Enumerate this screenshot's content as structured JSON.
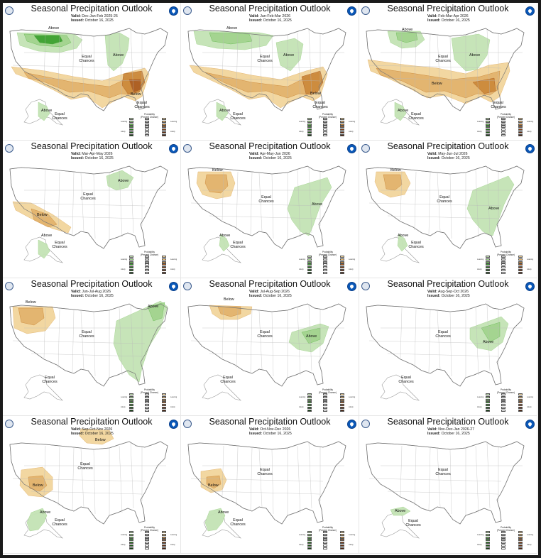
{
  "colors": {
    "above": [
      "#c4e3b5",
      "#a3d48e",
      "#6dbd5a",
      "#3ea232"
    ],
    "below": [
      "#f2d59c",
      "#e3b46e",
      "#cc8a3c",
      "#ad5f24"
    ],
    "map_line": "#9a9a9a",
    "frame": "#1a1a1a"
  },
  "legend": {
    "title": "Probability",
    "subtitle": "(Percent Chance)",
    "above_header": "Above Normal",
    "near_header": "Near Normal",
    "below_header": "Below Normal",
    "leaning": "Leaning",
    "likely": "Likely",
    "above_ranges": [
      "33-40%",
      "40-50%",
      "50-60%",
      "60-70%",
      "70-80%",
      "80-90%",
      "90-100%"
    ],
    "below_ranges": [
      "33-40%",
      "40-50%",
      "50-60%",
      "60-70%",
      "70-80%",
      "80-90%",
      "90-100%"
    ]
  },
  "panels": [
    {
      "title": "Seasonal Precipitation Outlook",
      "valid_label": "Valid:",
      "valid": "Dec-Jan-Feb 2025-26",
      "issued_label": "Issued:",
      "issued": "October 16, 2025",
      "labels": [
        "Above",
        "Above",
        "Equal Chances",
        "Below",
        "Equal Chances",
        "Above",
        "Equal Chances"
      ]
    },
    {
      "title": "Seasonal Precipitation Outlook",
      "valid_label": "Valid:",
      "valid": "Jan-Feb-Mar 2026",
      "issued_label": "Issued:",
      "issued": "October 16, 2025",
      "labels": [
        "Above",
        "Above",
        "Equal Chances",
        "Below",
        "Equal Chances",
        "Above",
        "Equal Chances"
      ]
    },
    {
      "title": "Seasonal Precipitation Outlook",
      "valid_label": "Valid:",
      "valid": "Feb-Mar-Apr 2026",
      "issued_label": "Issued:",
      "issued": "October 16, 2025",
      "labels": [
        "Above",
        "Above",
        "Equal Chances",
        "Below",
        "Equal Chances",
        "Above",
        "Equal Chances"
      ]
    },
    {
      "title": "Seasonal Precipitation Outlook",
      "valid_label": "Valid:",
      "valid": "Mar-Apr-May 2026",
      "issued_label": "Issued:",
      "issued": "October 16, 2025",
      "labels": [
        "Above",
        "Equal Chances",
        "Below",
        "Above",
        "Equal Chances"
      ]
    },
    {
      "title": "Seasonal Precipitation Outlook",
      "valid_label": "Valid:",
      "valid": "Apr-May-Jun 2026",
      "issued_label": "Issued:",
      "issued": "October 16, 2025",
      "labels": [
        "Below",
        "Equal Chances",
        "Above",
        "Above",
        "Equal Chances"
      ]
    },
    {
      "title": "Seasonal Precipitation Outlook",
      "valid_label": "Valid:",
      "valid": "May-Jun-Jul 2026",
      "issued_label": "Issued:",
      "issued": "October 16, 2025",
      "labels": [
        "Below",
        "Equal Chances",
        "Above",
        "Above",
        "Equal Chances"
      ]
    },
    {
      "title": "Seasonal Precipitation Outlook",
      "valid_label": "Valid:",
      "valid": "Jun-Jul-Aug 2026",
      "issued_label": "Issued:",
      "issued": "October 16, 2025",
      "labels": [
        "Below",
        "Equal Chances",
        "Above",
        "Equal Chances"
      ]
    },
    {
      "title": "Seasonal Precipitation Outlook",
      "valid_label": "Valid:",
      "valid": "Jul-Aug-Sep 2026",
      "issued_label": "Issued:",
      "issued": "October 16, 2025",
      "labels": [
        "Below",
        "Equal Chances",
        "Above",
        "Equal Chances"
      ]
    },
    {
      "title": "Seasonal Precipitation Outlook",
      "valid_label": "Valid:",
      "valid": "Aug-Sep-Oct 2026",
      "issued_label": "Issued:",
      "issued": "October 16, 2025",
      "labels": [
        "Equal Chances",
        "Above",
        "Equal Chances"
      ]
    },
    {
      "title": "Seasonal Precipitation Outlook",
      "valid_label": "Valid:",
      "valid": "Sep-Oct-Nov 2026",
      "issued_label": "Issued:",
      "issued": "October 16, 2025",
      "labels": [
        "Below",
        "Equal Chances",
        "Below",
        "Above",
        "Equal Chances"
      ]
    },
    {
      "title": "Seasonal Precipitation Outlook",
      "valid_label": "Valid:",
      "valid": "Oct-Nov-Dec 2026",
      "issued_label": "Issued:",
      "issued": "October 16, 2025",
      "labels": [
        "Equal Chances",
        "Below",
        "Above",
        "Equal Chances"
      ]
    },
    {
      "title": "Seasonal Precipitation Outlook",
      "valid_label": "Valid:",
      "valid": "Nov-Dec-Jan 2026-27",
      "issued_label": "Issued:",
      "issued": "October 16, 2025",
      "labels": [
        "Equal Chances",
        "Above",
        "Equal Chances"
      ]
    }
  ]
}
